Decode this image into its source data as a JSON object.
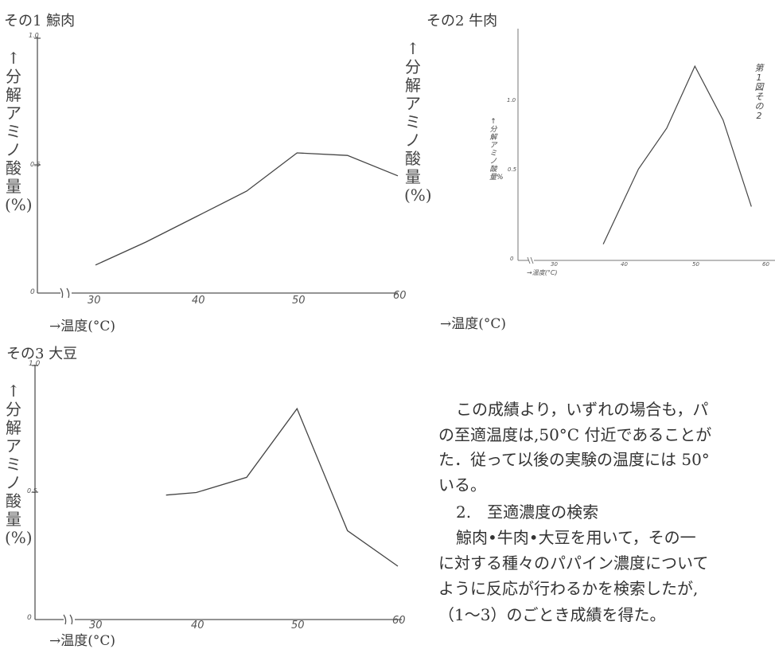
{
  "figures": {
    "fig1": {
      "title": "その1 鯨肉",
      "ylabel": "↑分解アミノ酸量(%)",
      "xlabel": "→温度(°C)",
      "y_ticks": [
        "1.0",
        "0.5",
        "0"
      ],
      "x_ticks": [
        "30",
        "40",
        "50",
        "60"
      ]
    },
    "fig2": {
      "title": "その2 牛肉",
      "ylabel": "↑分解アミノ酸量(%)",
      "ylabel_small": "↑分解アミノ酸量%",
      "xlabel": "→温度(°C)",
      "xlabel_small": "→温度(°C)",
      "y_ticks": [
        "1.0",
        "0.5",
        "0"
      ],
      "x_ticks": [
        "30",
        "40",
        "50",
        "60"
      ],
      "side_note": "第1図その2"
    },
    "fig3": {
      "title": "その3 大豆",
      "ylabel": "↑分解アミノ酸量(%)",
      "xlabel": "→温度(°C)",
      "y_ticks": [
        "1.0",
        "0.5",
        "0"
      ],
      "x_ticks": [
        "30",
        "40",
        "50",
        "60"
      ]
    }
  },
  "chart_data": [
    {
      "type": "line",
      "title": "その1 鯨肉",
      "xlabel": "→温度(°C)",
      "ylabel": "↑分解アミノ酸量(%)",
      "xlim": [
        30,
        60
      ],
      "ylim": [
        0,
        1.0
      ],
      "x": [
        30,
        35,
        40,
        45,
        50,
        55,
        60
      ],
      "values": [
        0.11,
        0.2,
        0.3,
        0.4,
        0.55,
        0.54,
        0.46
      ]
    },
    {
      "type": "line",
      "title": "その2 牛肉",
      "xlabel": "→温度(°C)",
      "ylabel": "↑分解アミノ酸量(%)",
      "xlim": [
        30,
        60
      ],
      "ylim": [
        0,
        1.0
      ],
      "x": [
        37,
        42,
        46,
        50,
        54,
        58
      ],
      "values": [
        0.09,
        0.55,
        0.8,
        1.18,
        0.85,
        0.32
      ]
    },
    {
      "type": "line",
      "title": "その3 大豆",
      "xlabel": "→温度(°C)",
      "ylabel": "↑分解アミノ酸量(%)",
      "xlim": [
        30,
        60
      ],
      "ylim": [
        0,
        1.0
      ],
      "x": [
        37,
        40,
        45,
        50,
        55,
        60
      ],
      "values": [
        0.49,
        0.5,
        0.56,
        0.83,
        0.35,
        0.21
      ]
    }
  ],
  "text": {
    "lines": [
      "この成績より，いずれの場合も，パ",
      "の至適温度は,50°C 付近であることが",
      "た．従って以後の実験の温度には 50°",
      "いる。",
      "2.　至適濃度の検索",
      "鯨肉•牛肉•大豆を用いて，その一",
      "に対する種々のパパイン濃度について",
      "ように反応が行わるかを検索したが,",
      "（1〜3）のごとき成績を得た。"
    ]
  }
}
